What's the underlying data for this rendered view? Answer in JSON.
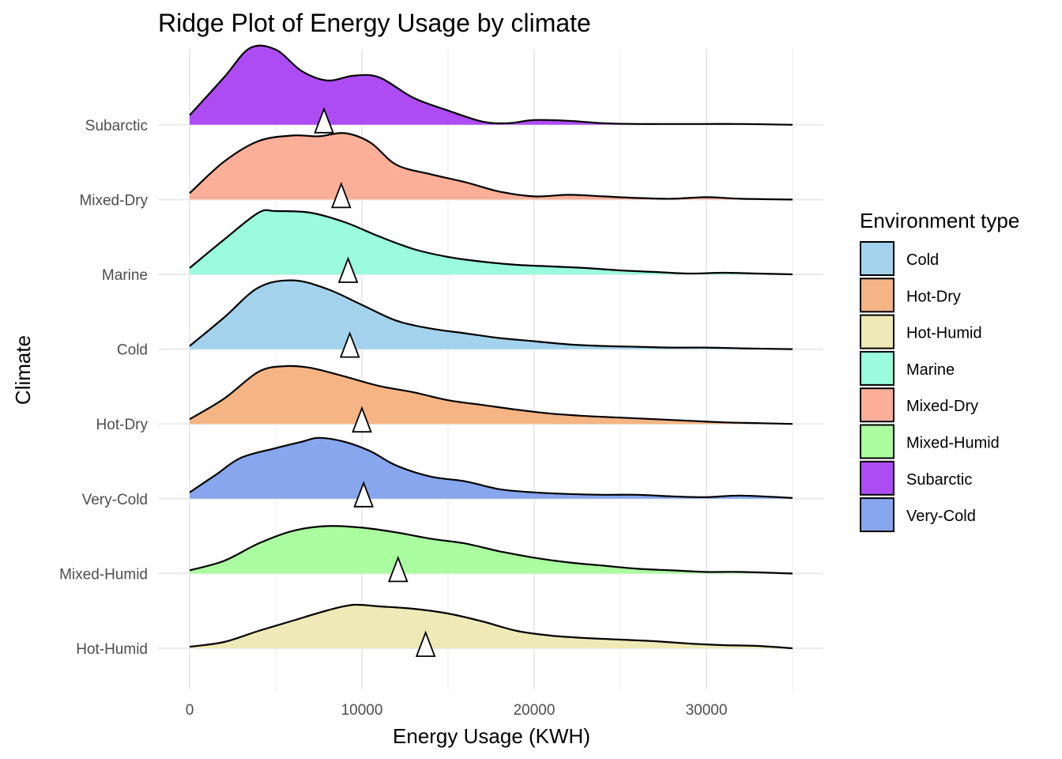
{
  "chart_data": {
    "type": "ridgeline",
    "title": "Ridge Plot of Energy Usage by climate",
    "xlabel": "Energy Usage (KWH)",
    "ylabel": "Climate",
    "xlim": [
      0,
      35000
    ],
    "x_ticks": [
      0,
      10000,
      20000,
      30000
    ],
    "x_tick_labels": [
      "0",
      "10000",
      "20000",
      "30000"
    ],
    "grid": true,
    "legend": {
      "title": "Environment type",
      "position": "right",
      "items": [
        {
          "label": "Cold",
          "color": "#A3D3EC"
        },
        {
          "label": "Hot-Dry",
          "color": "#F4B483"
        },
        {
          "label": "Hot-Humid",
          "color": "#EEE9B6"
        },
        {
          "label": "Marine",
          "color": "#9AFCDC"
        },
        {
          "label": "Mixed-Dry",
          "color": "#FCAF98"
        },
        {
          "label": "Mixed-Humid",
          "color": "#ABFEA0"
        },
        {
          "label": "Subarctic",
          "color": "#AE4CF4"
        },
        {
          "label": "Very-Cold",
          "color": "#88A6EE"
        }
      ]
    },
    "mean_marker": "triangle",
    "series": [
      {
        "name": "Hot-Humid",
        "color": "#EEE9B6",
        "mean": 13700,
        "density": [
          [
            0,
            0.02
          ],
          [
            2000,
            0.08
          ],
          [
            4000,
            0.22
          ],
          [
            6000,
            0.35
          ],
          [
            8000,
            0.48
          ],
          [
            9500,
            0.55
          ],
          [
            11000,
            0.53
          ],
          [
            13000,
            0.5
          ],
          [
            15000,
            0.44
          ],
          [
            17000,
            0.34
          ],
          [
            19000,
            0.22
          ],
          [
            21000,
            0.16
          ],
          [
            23000,
            0.13
          ],
          [
            25000,
            0.11
          ],
          [
            27000,
            0.09
          ],
          [
            29000,
            0.06
          ],
          [
            31000,
            0.04
          ],
          [
            33000,
            0.03
          ],
          [
            35000,
            0.0
          ]
        ]
      },
      {
        "name": "Mixed-Humid",
        "color": "#ABFEA0",
        "mean": 12100,
        "density": [
          [
            0,
            0.04
          ],
          [
            2000,
            0.16
          ],
          [
            4000,
            0.38
          ],
          [
            6000,
            0.54
          ],
          [
            8000,
            0.6
          ],
          [
            10000,
            0.58
          ],
          [
            12000,
            0.52
          ],
          [
            14000,
            0.44
          ],
          [
            16000,
            0.38
          ],
          [
            18000,
            0.28
          ],
          [
            20000,
            0.2
          ],
          [
            22000,
            0.14
          ],
          [
            24000,
            0.1
          ],
          [
            26000,
            0.06
          ],
          [
            28000,
            0.04
          ],
          [
            30000,
            0.02
          ],
          [
            32000,
            0.02
          ],
          [
            35000,
            0.0
          ]
        ]
      },
      {
        "name": "Very-Cold",
        "color": "#88A6EE",
        "mean": 10100,
        "density": [
          [
            0,
            0.08
          ],
          [
            1500,
            0.3
          ],
          [
            3000,
            0.52
          ],
          [
            5000,
            0.64
          ],
          [
            6500,
            0.72
          ],
          [
            7500,
            0.77
          ],
          [
            9000,
            0.72
          ],
          [
            10500,
            0.6
          ],
          [
            12000,
            0.42
          ],
          [
            14000,
            0.28
          ],
          [
            16000,
            0.22
          ],
          [
            18000,
            0.12
          ],
          [
            20000,
            0.08
          ],
          [
            22000,
            0.06
          ],
          [
            24000,
            0.05
          ],
          [
            26000,
            0.05
          ],
          [
            28000,
            0.03
          ],
          [
            30000,
            0.02
          ],
          [
            32000,
            0.04
          ],
          [
            35000,
            0.01
          ]
        ]
      },
      {
        "name": "Hot-Dry",
        "color": "#F4B483",
        "mean": 10000,
        "density": [
          [
            0,
            0.06
          ],
          [
            2000,
            0.32
          ],
          [
            4000,
            0.66
          ],
          [
            5500,
            0.73
          ],
          [
            7000,
            0.71
          ],
          [
            9000,
            0.6
          ],
          [
            11000,
            0.48
          ],
          [
            13000,
            0.4
          ],
          [
            15000,
            0.3
          ],
          [
            17000,
            0.24
          ],
          [
            19000,
            0.18
          ],
          [
            21000,
            0.13
          ],
          [
            23000,
            0.1
          ],
          [
            25000,
            0.08
          ],
          [
            27000,
            0.06
          ],
          [
            29000,
            0.04
          ],
          [
            31000,
            0.02
          ],
          [
            33000,
            0.01
          ],
          [
            35000,
            0.0
          ]
        ]
      },
      {
        "name": "Cold",
        "color": "#A3D3EC",
        "mean": 9300,
        "density": [
          [
            0,
            0.04
          ],
          [
            2000,
            0.4
          ],
          [
            4000,
            0.78
          ],
          [
            6000,
            0.87
          ],
          [
            8000,
            0.76
          ],
          [
            10000,
            0.56
          ],
          [
            12000,
            0.36
          ],
          [
            14000,
            0.26
          ],
          [
            16000,
            0.2
          ],
          [
            18000,
            0.14
          ],
          [
            20000,
            0.1
          ],
          [
            22000,
            0.06
          ],
          [
            24000,
            0.04
          ],
          [
            26000,
            0.03
          ],
          [
            28000,
            0.02
          ],
          [
            30000,
            0.02
          ],
          [
            32000,
            0.01
          ],
          [
            35000,
            0.0
          ]
        ]
      },
      {
        "name": "Marine",
        "color": "#9AFCDC",
        "mean": 9200,
        "density": [
          [
            0,
            0.08
          ],
          [
            2000,
            0.44
          ],
          [
            4000,
            0.78
          ],
          [
            5000,
            0.8
          ],
          [
            7000,
            0.78
          ],
          [
            9000,
            0.66
          ],
          [
            11000,
            0.48
          ],
          [
            13000,
            0.32
          ],
          [
            15000,
            0.22
          ],
          [
            17000,
            0.16
          ],
          [
            19000,
            0.12
          ],
          [
            21000,
            0.1
          ],
          [
            23000,
            0.08
          ],
          [
            25000,
            0.05
          ],
          [
            27000,
            0.03
          ],
          [
            29000,
            0.01
          ],
          [
            31000,
            0.02
          ],
          [
            33000,
            0.01
          ],
          [
            35000,
            0.0
          ]
        ]
      },
      {
        "name": "Mixed-Dry",
        "color": "#FCAF98",
        "mean": 8800,
        "density": [
          [
            0,
            0.08
          ],
          [
            2000,
            0.48
          ],
          [
            4000,
            0.74
          ],
          [
            6000,
            0.81
          ],
          [
            7500,
            0.8
          ],
          [
            9000,
            0.84
          ],
          [
            10500,
            0.72
          ],
          [
            12000,
            0.44
          ],
          [
            14000,
            0.32
          ],
          [
            16000,
            0.22
          ],
          [
            18000,
            0.1
          ],
          [
            20000,
            0.04
          ],
          [
            22000,
            0.06
          ],
          [
            24000,
            0.04
          ],
          [
            26000,
            0.02
          ],
          [
            28000,
            0.01
          ],
          [
            30000,
            0.03
          ],
          [
            32000,
            0.01
          ],
          [
            35000,
            0.0
          ]
        ]
      },
      {
        "name": "Subarctic",
        "color": "#AE4CF4",
        "mean": 7800,
        "density": [
          [
            0,
            0.12
          ],
          [
            2000,
            0.6
          ],
          [
            3500,
            0.97
          ],
          [
            5000,
            0.95
          ],
          [
            6500,
            0.68
          ],
          [
            8000,
            0.56
          ],
          [
            9500,
            0.62
          ],
          [
            11000,
            0.6
          ],
          [
            13000,
            0.34
          ],
          [
            15000,
            0.18
          ],
          [
            17000,
            0.04
          ],
          [
            18500,
            0.02
          ],
          [
            20000,
            0.06
          ],
          [
            22000,
            0.05
          ],
          [
            24000,
            0.02
          ],
          [
            26000,
            0.01
          ],
          [
            28000,
            0.01
          ],
          [
            30000,
            0.01
          ],
          [
            32000,
            0.01
          ],
          [
            35000,
            0.0
          ]
        ]
      }
    ]
  }
}
